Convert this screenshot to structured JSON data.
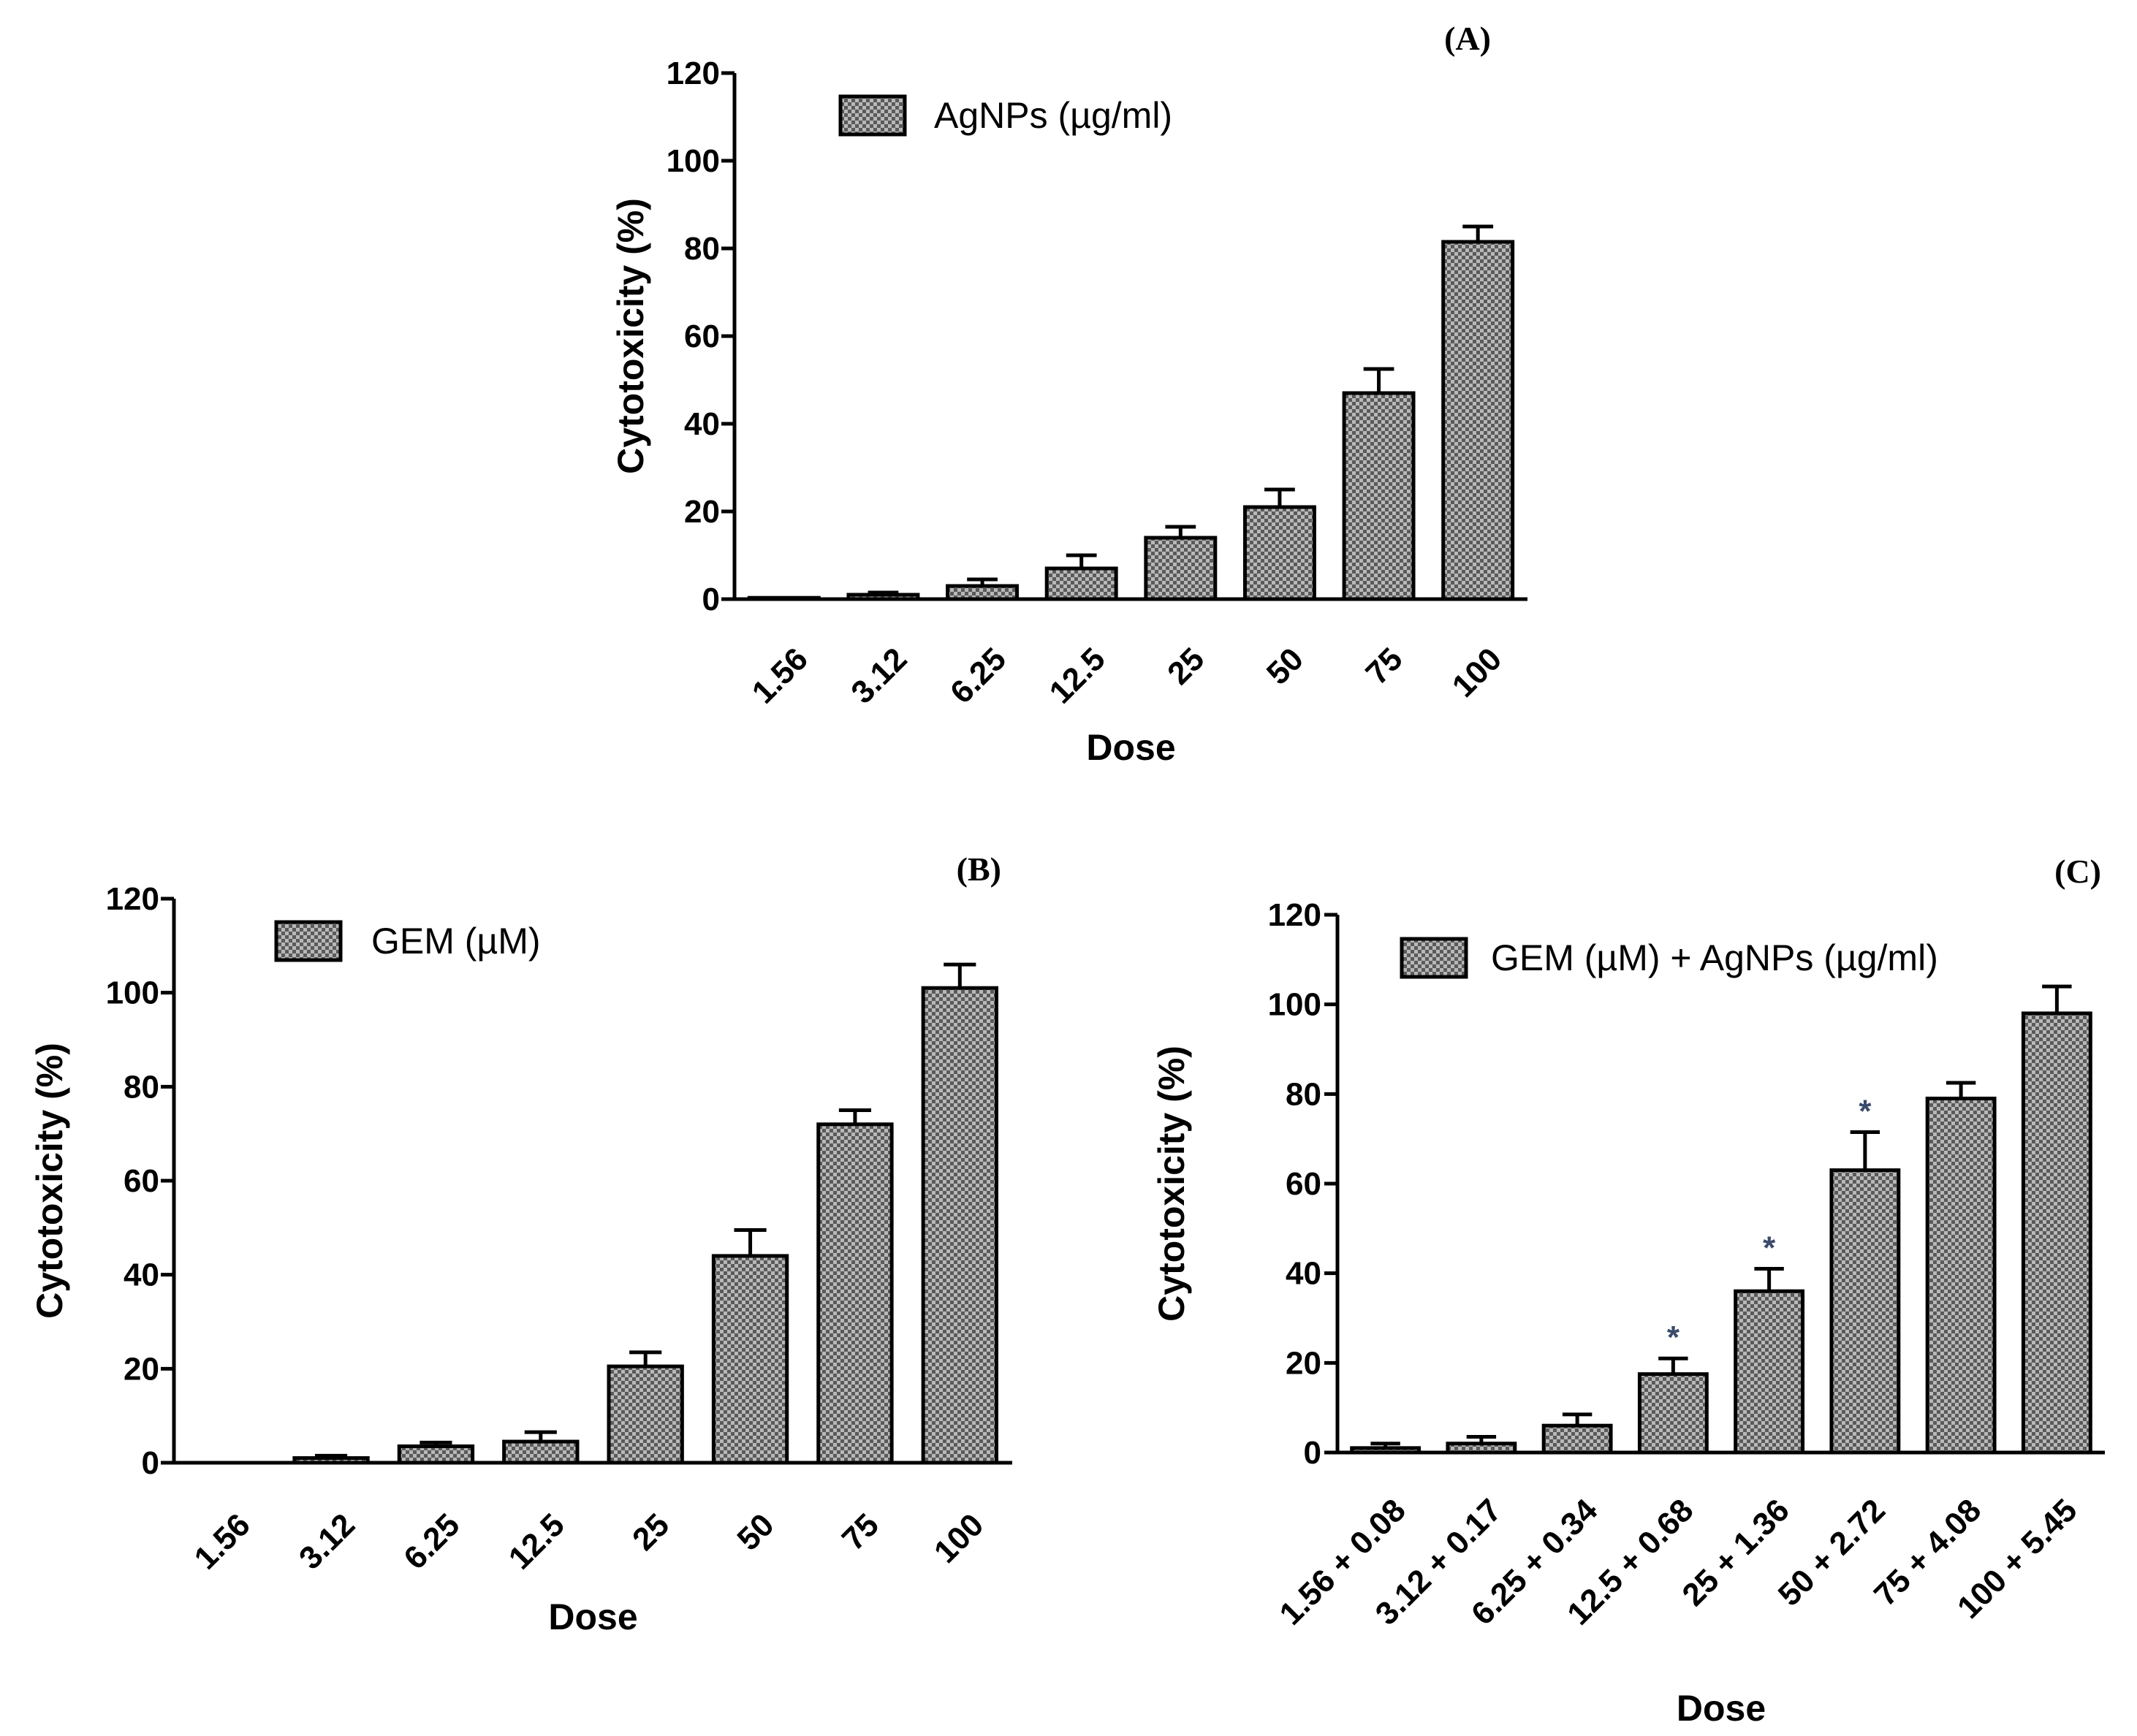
{
  "colors": {
    "bar_fill": "#b8b8b8",
    "bar_pattern": "#5a5a5a",
    "ink": "#000000",
    "star": "#3a4a6a"
  },
  "chart_data": [
    {
      "id": "A",
      "type": "bar",
      "panel_label": "(A)",
      "legend": "AgNPs (µg/ml)",
      "categories": [
        "1.56",
        "3.12",
        "6.25",
        "12.5",
        "25",
        "50",
        "75",
        "100"
      ],
      "values": [
        0.3,
        1,
        3,
        7,
        14,
        21,
        47,
        81.5
      ],
      "errors": [
        0,
        0.5,
        1.5,
        3,
        2.5,
        4,
        5.5,
        3.5
      ],
      "significance": [
        "",
        "",
        "",
        "",
        "",
        "",
        "",
        ""
      ],
      "xlabel": "Dose",
      "ylabel": "Cytotoxicity (%)",
      "ylim": [
        0,
        120
      ],
      "yticks": [
        "0",
        "20",
        "40",
        "60",
        "80",
        "100",
        "120"
      ]
    },
    {
      "id": "B",
      "type": "bar",
      "panel_label": "(B)",
      "legend": "GEM (µM)",
      "categories": [
        "1.56",
        "3.12",
        "6.25",
        "12.5",
        "25",
        "50",
        "75",
        "100"
      ],
      "values": [
        0,
        1,
        3.5,
        4.5,
        20.5,
        44,
        72,
        101
      ],
      "errors": [
        0,
        0.5,
        0.8,
        2,
        3,
        5.5,
        3,
        5
      ],
      "significance": [
        "",
        "",
        "",
        "",
        "",
        "",
        "",
        ""
      ],
      "xlabel": "Dose",
      "ylabel": "Cytotoxicity (%)",
      "ylim": [
        0,
        120
      ],
      "yticks": [
        "0",
        "20",
        "40",
        "60",
        "80",
        "100",
        "120"
      ]
    },
    {
      "id": "C",
      "type": "bar",
      "panel_label": "(C)",
      "legend": "GEM (µM) + AgNPs (µg/ml)",
      "categories": [
        "1.56 + 0.08",
        "3.12 + 0.17",
        "6.25 + 0.34",
        "12.5 + 0.68",
        "25 + 1.36",
        "50 + 2.72",
        "75 + 4.08",
        "100 + 5.45"
      ],
      "values": [
        1,
        2,
        6,
        17.5,
        36,
        63,
        79,
        98
      ],
      "errors": [
        1,
        1.5,
        2.5,
        3.5,
        5,
        8.5,
        3.5,
        6
      ],
      "significance": [
        "",
        "",
        "",
        "*",
        "*",
        "*",
        "",
        ""
      ],
      "xlabel": "Dose",
      "ylabel": "Cytotoxicity (%)",
      "ylim": [
        0,
        120
      ],
      "yticks": [
        "0",
        "20",
        "40",
        "60",
        "80",
        "100",
        "120"
      ]
    }
  ]
}
